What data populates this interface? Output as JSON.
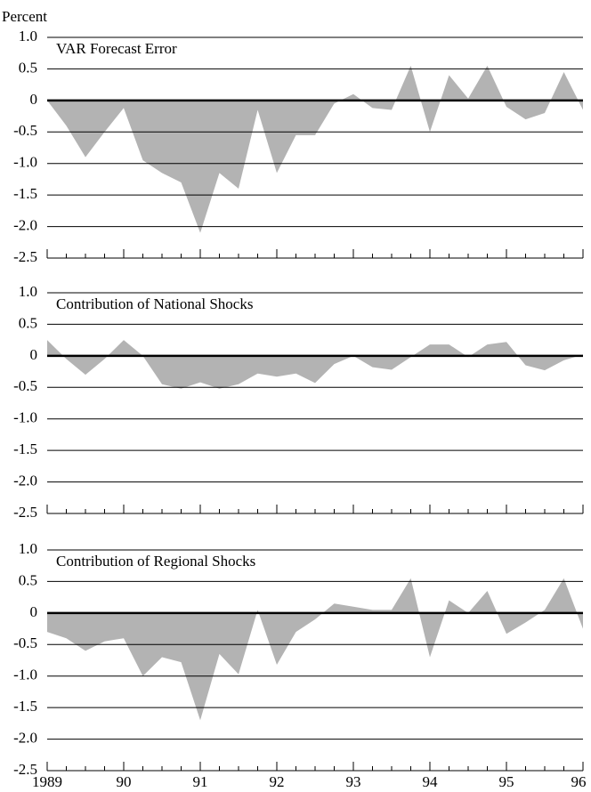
{
  "chart_data": [
    {
      "type": "area",
      "title": "VAR Forecast Error",
      "ylabel": "Percent",
      "color": "#b3b3b3",
      "values": [
        0,
        -0.4,
        -0.9,
        -0.5,
        -0.12,
        -0.95,
        -1.15,
        -1.3,
        -2.1,
        -1.15,
        -1.4,
        -0.15,
        -1.15,
        -0.55,
        -0.55,
        -0.05,
        0.1,
        -0.12,
        -0.15,
        0.55,
        -0.5,
        0.4,
        0.03,
        0.55,
        -0.1,
        -0.3,
        -0.2,
        0.45,
        -0.15
      ],
      "ylim": [
        -2.5,
        1.0
      ],
      "yticks": [
        {
          "value": 1,
          "label": "1.0"
        },
        0.5,
        0,
        -0.5,
        {
          "value": -1,
          "label": "-1.0"
        },
        -1.5,
        {
          "value": -2,
          "label": "-2.0"
        },
        -2.5
      ]
    },
    {
      "type": "area",
      "title": "Contribution of National Shocks",
      "color": "#b3b3b3",
      "values": [
        0.25,
        -0.05,
        -0.3,
        -0.05,
        0.25,
        0,
        -0.45,
        -0.52,
        -0.42,
        -0.52,
        -0.45,
        -0.28,
        -0.33,
        -0.28,
        -0.43,
        -0.13,
        0,
        -0.18,
        -0.22,
        -0.02,
        0.18,
        0.18,
        -0.02,
        0.18,
        0.22,
        -0.15,
        -0.23,
        -0.07,
        0.02
      ],
      "ylim": [
        -2.5,
        1.0
      ],
      "yticks": [
        {
          "value": 1,
          "label": "1.0"
        },
        0.5,
        0,
        -0.5,
        {
          "value": -1,
          "label": "-1.0"
        },
        -1.5,
        {
          "value": -2,
          "label": "-2.0"
        },
        -2.5
      ]
    },
    {
      "type": "area",
      "title": "Contribution of Regional Shocks",
      "color": "#b3b3b3",
      "categories": [
        "1989",
        null,
        null,
        null,
        "90",
        null,
        null,
        null,
        "91",
        null,
        null,
        null,
        "92",
        null,
        null,
        null,
        "93",
        null,
        null,
        null,
        "94",
        null,
        null,
        null,
        "95",
        null,
        null,
        null,
        "96"
      ],
      "values": [
        -0.3,
        -0.4,
        -0.6,
        -0.45,
        -0.4,
        -1.0,
        -0.7,
        -0.78,
        -1.7,
        -0.65,
        -0.97,
        0.05,
        -0.82,
        -0.3,
        -0.1,
        0.15,
        0.1,
        0.05,
        0.05,
        0.55,
        -0.7,
        0.2,
        0,
        0.35,
        -0.33,
        -0.15,
        0.05,
        0.55,
        -0.25
      ],
      "ylim": [
        -2.5,
        1.0
      ],
      "yticks": [
        {
          "value": 1,
          "label": "1.0"
        },
        0.5,
        0,
        -0.5,
        {
          "value": -1,
          "label": "-1.0"
        },
        -1.5,
        {
          "value": -2,
          "label": "-2.0"
        },
        -2.5
      ]
    }
  ]
}
